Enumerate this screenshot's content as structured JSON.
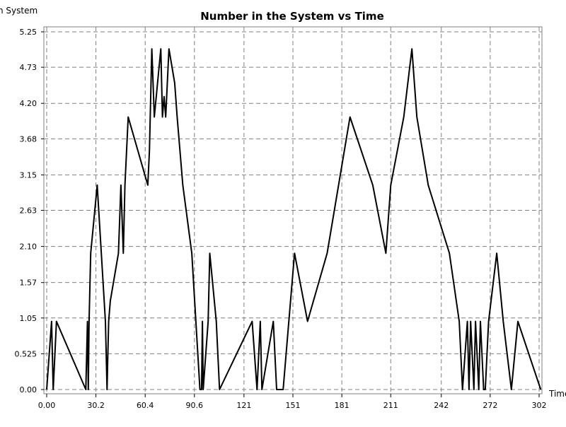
{
  "chart_data": {
    "type": "line",
    "title": "Number in the System vs Time",
    "ylabel": "n System",
    "xlabel": "Time",
    "xlim": [
      0,
      302
    ],
    "ylim": [
      0,
      5.25
    ],
    "xticks": [
      0,
      30.2,
      60.4,
      90.6,
      121,
      151,
      181,
      211,
      242,
      272,
      302
    ],
    "xtick_labels": [
      "0.00",
      "30.2",
      "60.4",
      "90.6",
      "121",
      "151",
      "181",
      "211",
      "242",
      "272",
      "302"
    ],
    "yticks": [
      0,
      0.525,
      1.05,
      1.57,
      2.1,
      2.63,
      3.15,
      3.68,
      4.2,
      4.73,
      5.25
    ],
    "ytick_labels": [
      "0.00",
      "0.525",
      "1.05",
      "1.57",
      "2.10",
      "2.63",
      "3.15",
      "3.68",
      "4.20",
      "4.73",
      "5.25"
    ],
    "grid": true,
    "line_color": "#000000",
    "grid_color": "#808080",
    "series": [
      {
        "x": [
          0,
          3,
          4,
          6,
          24,
          25,
          25.5,
          26,
          27,
          31,
          36,
          37,
          37.5,
          38,
          39,
          44,
          45.5,
          47,
          48,
          50,
          62,
          63,
          64.5,
          66,
          70,
          71,
          72,
          73,
          75,
          78.5,
          80,
          83.5,
          89,
          94,
          95,
          95.5,
          96,
          99,
          100,
          104,
          106,
          126,
          129,
          131,
          132,
          139,
          141,
          145,
          152,
          160,
          172,
          186,
          200,
          208,
          211,
          219,
          224,
          227,
          234,
          247,
          253,
          255,
          258,
          259,
          260,
          262,
          263,
          265,
          266,
          268,
          269,
          271,
          276,
          280,
          285,
          289,
          303
        ],
        "values": [
          0,
          1,
          0,
          1,
          0,
          1,
          0,
          1,
          2,
          3,
          1,
          0,
          0.5,
          1,
          1.3,
          2,
          3,
          2,
          3,
          4,
          3,
          3.5,
          5,
          4,
          5,
          4,
          4.3,
          4,
          5,
          4.5,
          4,
          3,
          2,
          0,
          0,
          1,
          0,
          1,
          2,
          1,
          0,
          1,
          0,
          1,
          0,
          1,
          0,
          0,
          2,
          1,
          2,
          4,
          3,
          2,
          3,
          4,
          5,
          4,
          3,
          2,
          1,
          0,
          1,
          0,
          1,
          0,
          1,
          0,
          1,
          0,
          0,
          1,
          2,
          1,
          0,
          1,
          0
        ]
      }
    ]
  }
}
